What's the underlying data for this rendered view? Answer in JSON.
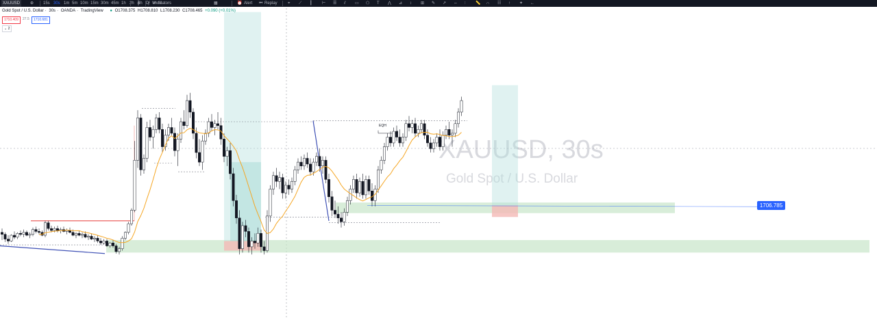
{
  "toolbar": {
    "symbol": "XAUUSD",
    "intervals": [
      "15s",
      "30s",
      "1m",
      "5m",
      "10m",
      "15m",
      "30m",
      "45m",
      "1h",
      "2h",
      "4h",
      "D",
      "W",
      "M"
    ],
    "active_interval": "30s",
    "indicators_label": "Indicators",
    "alert_label": "Alert",
    "replay_label": "Replay"
  },
  "legend": {
    "instrument": "Gold Spot / U.S. Dollar",
    "interval": "30s",
    "exchange": "OANDA",
    "source": "TradingView",
    "open": "O1708.375",
    "high": "H1708.810",
    "low": "L1708.230",
    "close": "C1708.465",
    "change": "+0.090 (+0.01%)"
  },
  "trade_panel": {
    "sell_price": "1710.409",
    "spread": "27.5",
    "buy_price": "1710.681",
    "collapse_label": "2"
  },
  "watermark": {
    "symbol": "XAUUSD, 30s",
    "description": "Gold Spot / U.S. Dollar"
  },
  "last_price_label": "1706.785",
  "chart_data": {
    "type": "candlestick",
    "symbol": "XAUUSD",
    "interval": "30s",
    "last_price": 1706.785,
    "ylim": [
      1701.0,
      1717.1
    ],
    "annotations": [
      {
        "text": "EQH"
      }
    ],
    "overlays": [
      "moving-average-orange",
      "demand-zones-green",
      "position-tools",
      "trend-lines"
    ],
    "candles": [
      [
        1705.45,
        1705.65,
        1705.05,
        1705.35
      ],
      [
        1705.35,
        1705.45,
        1704.95,
        1705.1
      ],
      [
        1705.1,
        1705.3,
        1704.85,
        1705.0
      ],
      [
        1705.0,
        1705.35,
        1704.95,
        1705.3
      ],
      [
        1705.3,
        1705.5,
        1705.1,
        1705.2
      ],
      [
        1705.2,
        1705.45,
        1705.1,
        1705.4
      ],
      [
        1705.4,
        1705.55,
        1705.25,
        1705.35
      ],
      [
        1705.35,
        1705.6,
        1705.2,
        1705.45
      ],
      [
        1705.45,
        1705.55,
        1705.25,
        1705.3
      ],
      [
        1705.3,
        1705.45,
        1705.15,
        1705.35
      ],
      [
        1705.35,
        1705.7,
        1705.25,
        1705.6
      ],
      [
        1705.6,
        1705.75,
        1705.4,
        1705.5
      ],
      [
        1705.5,
        1705.65,
        1705.35,
        1705.45
      ],
      [
        1705.45,
        1705.55,
        1705.25,
        1705.3
      ],
      [
        1705.3,
        1706.05,
        1705.2,
        1705.95
      ],
      [
        1705.95,
        1706.05,
        1705.55,
        1705.65
      ],
      [
        1705.65,
        1705.8,
        1705.45,
        1705.55
      ],
      [
        1705.55,
        1705.75,
        1705.45,
        1705.65
      ],
      [
        1705.65,
        1705.8,
        1705.45,
        1705.55
      ],
      [
        1705.55,
        1705.7,
        1705.4,
        1705.6
      ],
      [
        1705.6,
        1705.75,
        1705.45,
        1705.5
      ],
      [
        1705.5,
        1705.65,
        1705.35,
        1705.55
      ],
      [
        1705.55,
        1705.7,
        1705.4,
        1705.45
      ],
      [
        1705.45,
        1705.6,
        1705.25,
        1705.3
      ],
      [
        1705.3,
        1705.45,
        1705.15,
        1705.4
      ],
      [
        1705.4,
        1705.55,
        1705.25,
        1705.3
      ],
      [
        1705.3,
        1705.45,
        1705.15,
        1705.35
      ],
      [
        1705.35,
        1705.5,
        1705.15,
        1705.2
      ],
      [
        1705.2,
        1705.35,
        1705.05,
        1705.25
      ],
      [
        1705.25,
        1705.4,
        1705.05,
        1705.1
      ],
      [
        1705.1,
        1705.25,
        1704.95,
        1705.15
      ],
      [
        1705.15,
        1705.3,
        1704.9,
        1705.0
      ],
      [
        1705.0,
        1705.15,
        1704.8,
        1704.9
      ],
      [
        1704.9,
        1705.1,
        1704.8,
        1705.0
      ],
      [
        1705.0,
        1705.1,
        1704.7,
        1704.75
      ],
      [
        1704.75,
        1704.95,
        1704.65,
        1704.9
      ],
      [
        1704.9,
        1705.05,
        1704.65,
        1704.75
      ],
      [
        1704.75,
        1704.85,
        1704.35,
        1704.45
      ],
      [
        1704.45,
        1704.7,
        1704.3,
        1704.6
      ],
      [
        1704.6,
        1705.25,
        1704.5,
        1705.15
      ],
      [
        1705.15,
        1705.5,
        1705.05,
        1705.45
      ],
      [
        1705.45,
        1706.0,
        1705.35,
        1705.9
      ],
      [
        1705.9,
        1706.7,
        1705.8,
        1706.6
      ],
      [
        1706.6,
        1710.2,
        1706.5,
        1709.2
      ],
      [
        1709.2,
        1711.8,
        1708.8,
        1711.4
      ],
      [
        1711.4,
        1711.6,
        1708.4,
        1708.7
      ],
      [
        1708.7,
        1709.5,
        1708.5,
        1709.3
      ],
      [
        1709.3,
        1711.2,
        1709.1,
        1710.9
      ],
      [
        1710.9,
        1711.3,
        1710.2,
        1710.4
      ],
      [
        1710.4,
        1711.0,
        1709.8,
        1710.8
      ],
      [
        1710.8,
        1711.6,
        1710.6,
        1711.4
      ],
      [
        1711.4,
        1711.7,
        1710.6,
        1710.8
      ],
      [
        1710.8,
        1711.1,
        1709.6,
        1709.9
      ],
      [
        1709.9,
        1710.8,
        1709.7,
        1710.5
      ],
      [
        1710.5,
        1711.1,
        1710.2,
        1710.9
      ],
      [
        1710.9,
        1711.4,
        1710.5,
        1710.6
      ],
      [
        1710.6,
        1710.9,
        1709.4,
        1709.7
      ],
      [
        1709.7,
        1710.6,
        1708.9,
        1710.3
      ],
      [
        1710.3,
        1711.4,
        1710.1,
        1711.2
      ],
      [
        1711.2,
        1711.8,
        1710.8,
        1711.0
      ],
      [
        1711.0,
        1712.6,
        1710.9,
        1712.3
      ],
      [
        1712.3,
        1712.7,
        1711.4,
        1711.7
      ],
      [
        1711.7,
        1711.9,
        1710.3,
        1710.6
      ],
      [
        1710.6,
        1710.9,
        1709.3,
        1709.6
      ],
      [
        1709.6,
        1710.3,
        1708.9,
        1709.1
      ],
      [
        1709.1,
        1710.5,
        1708.7,
        1710.2
      ],
      [
        1710.2,
        1710.8,
        1710.0,
        1710.6
      ],
      [
        1710.6,
        1711.4,
        1710.4,
        1711.2
      ],
      [
        1711.2,
        1711.6,
        1710.7,
        1710.9
      ],
      [
        1710.9,
        1711.3,
        1710.5,
        1711.1
      ],
      [
        1711.1,
        1711.7,
        1710.8,
        1711.0
      ],
      [
        1711.0,
        1711.4,
        1710.0,
        1710.3
      ],
      [
        1710.3,
        1710.6,
        1709.1,
        1709.4
      ],
      [
        1709.4,
        1709.9,
        1708.9,
        1709.7
      ],
      [
        1709.7,
        1710.1,
        1708.2,
        1708.5
      ],
      [
        1708.5,
        1708.8,
        1706.8,
        1707.1
      ],
      [
        1707.1,
        1707.4,
        1705.9,
        1706.2
      ],
      [
        1706.2,
        1706.6,
        1704.3,
        1704.6
      ],
      [
        1704.6,
        1706.0,
        1704.4,
        1705.8
      ],
      [
        1705.8,
        1706.1,
        1705.2,
        1705.5
      ],
      [
        1705.5,
        1705.7,
        1704.4,
        1704.7
      ],
      [
        1704.7,
        1705.2,
        1704.3,
        1705.0
      ],
      [
        1705.0,
        1705.4,
        1704.6,
        1704.9
      ],
      [
        1704.9,
        1705.7,
        1704.7,
        1705.4
      ],
      [
        1705.4,
        1705.6,
        1704.4,
        1704.7
      ],
      [
        1704.7,
        1705.0,
        1704.3,
        1704.5
      ],
      [
        1704.5,
        1706.6,
        1704.4,
        1706.3
      ],
      [
        1706.3,
        1707.9,
        1706.0,
        1707.7
      ],
      [
        1707.7,
        1708.6,
        1707.4,
        1708.4
      ],
      [
        1708.4,
        1708.8,
        1707.8,
        1708.1
      ],
      [
        1708.1,
        1708.6,
        1707.7,
        1708.3
      ],
      [
        1708.3,
        1708.5,
        1707.2,
        1707.5
      ],
      [
        1707.5,
        1708.1,
        1707.2,
        1707.9
      ],
      [
        1707.9,
        1708.2,
        1707.4,
        1707.7
      ],
      [
        1707.7,
        1708.3,
        1707.5,
        1708.1
      ],
      [
        1708.1,
        1708.9,
        1707.9,
        1708.7
      ],
      [
        1708.7,
        1709.3,
        1708.5,
        1709.1
      ],
      [
        1709.1,
        1709.4,
        1708.7,
        1708.9
      ],
      [
        1708.9,
        1709.5,
        1708.7,
        1709.3
      ],
      [
        1709.3,
        1709.6,
        1708.8,
        1709.0
      ],
      [
        1709.0,
        1709.3,
        1708.4,
        1708.6
      ],
      [
        1708.6,
        1709.3,
        1708.4,
        1709.1
      ],
      [
        1709.1,
        1709.6,
        1708.9,
        1709.4
      ],
      [
        1709.4,
        1709.8,
        1708.6,
        1708.9
      ],
      [
        1708.9,
        1709.4,
        1708.5,
        1709.2
      ],
      [
        1709.2,
        1709.4,
        1708.0,
        1708.2
      ],
      [
        1708.2,
        1708.5,
        1707.0,
        1707.3
      ],
      [
        1707.3,
        1707.6,
        1706.3,
        1706.6
      ],
      [
        1706.6,
        1707.1,
        1706.2,
        1706.4
      ],
      [
        1706.4,
        1706.8,
        1705.9,
        1706.2
      ],
      [
        1706.2,
        1706.5,
        1705.7,
        1706.0
      ],
      [
        1706.0,
        1706.7,
        1705.8,
        1706.5
      ],
      [
        1706.5,
        1707.3,
        1706.3,
        1707.1
      ],
      [
        1707.1,
        1707.9,
        1706.9,
        1707.7
      ],
      [
        1707.7,
        1708.4,
        1707.5,
        1708.2
      ],
      [
        1708.2,
        1708.5,
        1707.2,
        1707.5
      ],
      [
        1707.5,
        1708.3,
        1707.3,
        1708.1
      ],
      [
        1708.1,
        1708.5,
        1707.2,
        1707.4
      ],
      [
        1707.4,
        1708.4,
        1707.2,
        1708.2
      ],
      [
        1708.2,
        1708.4,
        1707.4,
        1707.6
      ],
      [
        1707.6,
        1708.0,
        1706.8,
        1707.1
      ],
      [
        1707.1,
        1707.9,
        1706.8,
        1707.7
      ],
      [
        1707.7,
        1708.9,
        1707.5,
        1708.7
      ],
      [
        1708.7,
        1709.4,
        1708.5,
        1709.2
      ],
      [
        1709.2,
        1710.1,
        1709.0,
        1709.9
      ],
      [
        1709.9,
        1710.6,
        1709.7,
        1710.4
      ],
      [
        1710.4,
        1710.7,
        1709.9,
        1710.1
      ],
      [
        1710.1,
        1710.9,
        1709.9,
        1710.7
      ],
      [
        1710.7,
        1711.0,
        1710.2,
        1710.4
      ],
      [
        1710.4,
        1710.8,
        1709.9,
        1710.1
      ],
      [
        1710.1,
        1710.6,
        1709.9,
        1710.4
      ],
      [
        1710.4,
        1711.3,
        1710.2,
        1711.1
      ],
      [
        1711.1,
        1711.5,
        1710.7,
        1710.9
      ],
      [
        1710.9,
        1711.3,
        1710.6,
        1711.1
      ],
      [
        1711.1,
        1711.4,
        1710.4,
        1710.6
      ],
      [
        1710.6,
        1711.0,
        1710.4,
        1710.8
      ],
      [
        1710.8,
        1711.3,
        1710.6,
        1711.1
      ],
      [
        1711.1,
        1711.3,
        1710.3,
        1710.5
      ],
      [
        1710.5,
        1710.8,
        1709.9,
        1710.1
      ],
      [
        1710.1,
        1710.4,
        1709.6,
        1709.8
      ],
      [
        1709.8,
        1710.3,
        1709.6,
        1710.1
      ],
      [
        1710.1,
        1710.6,
        1709.9,
        1710.4
      ],
      [
        1710.4,
        1710.8,
        1709.7,
        1709.9
      ],
      [
        1709.9,
        1710.7,
        1709.7,
        1710.5
      ],
      [
        1710.5,
        1711.0,
        1710.3,
        1710.8
      ],
      [
        1710.8,
        1711.2,
        1710.3,
        1710.5
      ],
      [
        1710.5,
        1710.8,
        1709.9,
        1710.6
      ],
      [
        1710.6,
        1711.3,
        1710.4,
        1711.1
      ],
      [
        1711.1,
        1711.9,
        1710.9,
        1711.7
      ],
      [
        1711.7,
        1712.5,
        1711.5,
        1712.3
      ]
    ]
  }
}
